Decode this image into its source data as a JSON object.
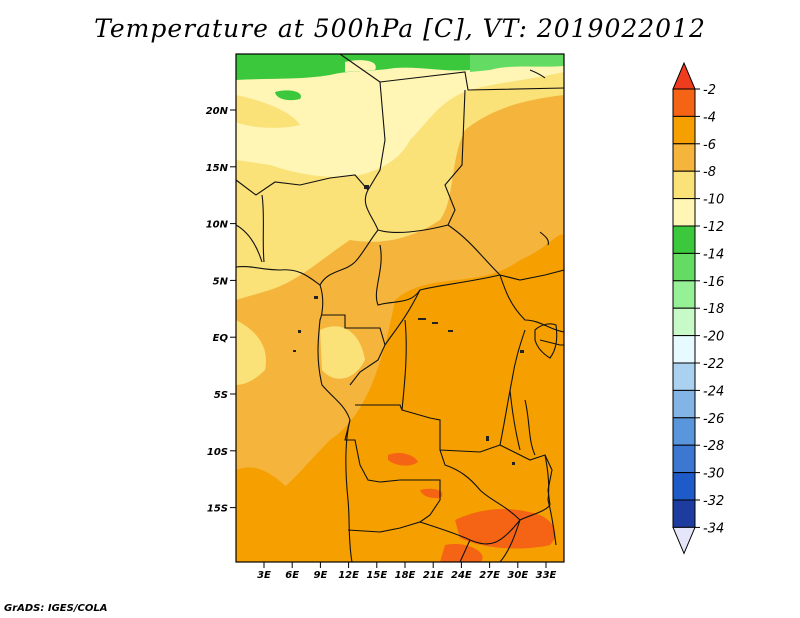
{
  "title": "Temperature at 500hPa [C], VT: 2019022012",
  "footer": "GrADS: IGES/COLA",
  "map": {
    "lat_labels": [
      "20N",
      "15N",
      "10N",
      "5N",
      "EQ",
      "5S",
      "10S",
      "15S"
    ],
    "lon_labels": [
      "3E",
      "6E",
      "9E",
      "12E",
      "15E",
      "18E",
      "21E",
      "24E",
      "27E",
      "30E",
      "33E"
    ]
  },
  "colorbar": {
    "levels": [
      "-2",
      "-4",
      "-6",
      "-8",
      "-10",
      "-12",
      "-14",
      "-16",
      "-18",
      "-20",
      "-22",
      "-24",
      "-26",
      "-28",
      "-30",
      "-32",
      "-34"
    ],
    "colors": {
      "above_-2": "#f03c1e",
      "-2_-4": "#f56414",
      "-4_-6": "#f5a000",
      "-6_-8": "#f5b43c",
      "-8_-10": "#fae178",
      "-10_-12": "#fff5b4",
      "-12_-14": "#3cc83c",
      "-14_-16": "#64dc64",
      "-16_-18": "#96f096",
      "-18_-20": "#c8fac8",
      "-20_-22": "#e6faff",
      "-22_-24": "#aad2f0",
      "-24_-26": "#82b4e6",
      "-26_-28": "#5a96dc",
      "-28_-30": "#3c78d2",
      "-30_-32": "#1e5ac8",
      "-32_-34": "#1e3ca0",
      "below_-34": "#140a64"
    }
  }
}
